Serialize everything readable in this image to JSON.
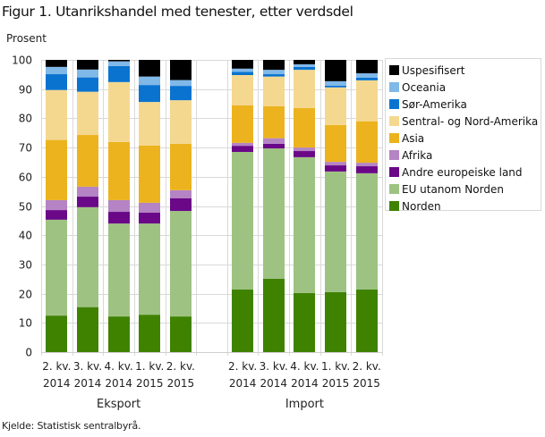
{
  "title": "Figur 1. Utanrikshandel med tenester, etter verdsdel",
  "unit_label": "Prosent",
  "source": "Kjelde: Statistisk sentralbyrå.",
  "chart_data": {
    "type": "bar",
    "stacked": true,
    "title": "Figur 1. Utanrikshandel med tenester, etter verdsdel",
    "ylabel": "Prosent",
    "xlabel": "",
    "ylim": [
      0,
      100
    ],
    "yticks": [
      0,
      10,
      20,
      30,
      40,
      50,
      60,
      70,
      80,
      90,
      100
    ],
    "grid": true,
    "legend_position": "right",
    "groups": [
      {
        "label": "Eksport",
        "categories": [
          [
            "2. kv.",
            "2014"
          ],
          [
            "3. kv.",
            "2014"
          ],
          [
            "4. kv.",
            "2014"
          ],
          [
            "1. kv.",
            "2015"
          ],
          [
            "2. kv.",
            "2015"
          ]
        ]
      },
      {
        "label": "Import",
        "categories": [
          [
            "2. kv.",
            "2014"
          ],
          [
            "3. kv.",
            "2014"
          ],
          [
            "4. kv.",
            "2014"
          ],
          [
            "1. kv.",
            "2015"
          ],
          [
            "2. kv.",
            "2015"
          ]
        ]
      }
    ],
    "series": [
      {
        "name": "Norden",
        "color": "#3f8200",
        "values": [
          12.5,
          15.4,
          12.2,
          12.8,
          12.2,
          21.4,
          25.1,
          20.2,
          20.5,
          21.4
        ]
      },
      {
        "name": "EU utanom Norden",
        "color": "#9ec282",
        "values": [
          32.8,
          34.2,
          31.8,
          31.2,
          36.1,
          47.1,
          44.6,
          46.5,
          41.3,
          39.8
        ]
      },
      {
        "name": "Andre europeiske land",
        "color": "#6a0888",
        "values": [
          3.3,
          3.6,
          4.0,
          3.7,
          4.3,
          2.1,
          1.6,
          2.1,
          2.1,
          2.4
        ]
      },
      {
        "name": "Afrika",
        "color": "#b484c4",
        "values": [
          3.4,
          3.4,
          4.0,
          3.4,
          2.8,
          1.0,
          1.9,
          1.2,
          1.2,
          1.2
        ]
      },
      {
        "name": "Asia",
        "color": "#ecb31e",
        "values": [
          20.6,
          17.7,
          19.9,
          19.6,
          15.9,
          12.8,
          10.9,
          13.5,
          12.6,
          14.2
        ]
      },
      {
        "name": "Sentral- og Nord-Amerika",
        "color": "#f4d890",
        "values": [
          17.1,
          14.8,
          20.5,
          14.9,
          14.9,
          10.4,
          10.2,
          13.1,
          12.9,
          14.0
        ]
      },
      {
        "name": "Sør-Amerika",
        "color": "#0a73d0",
        "values": [
          5.4,
          4.9,
          5.5,
          5.8,
          4.9,
          1.1,
          0.8,
          1.0,
          0.6,
          0.9
        ]
      },
      {
        "name": "Oceania",
        "color": "#80b8e8",
        "values": [
          2.5,
          2.7,
          1.6,
          2.9,
          2.0,
          1.1,
          1.5,
          0.9,
          1.5,
          1.5
        ]
      },
      {
        "name": "Uspesifisert",
        "color": "#000000",
        "values": [
          2.4,
          3.3,
          0.5,
          5.7,
          6.9,
          3.0,
          3.4,
          1.5,
          7.3,
          4.6
        ]
      }
    ]
  }
}
